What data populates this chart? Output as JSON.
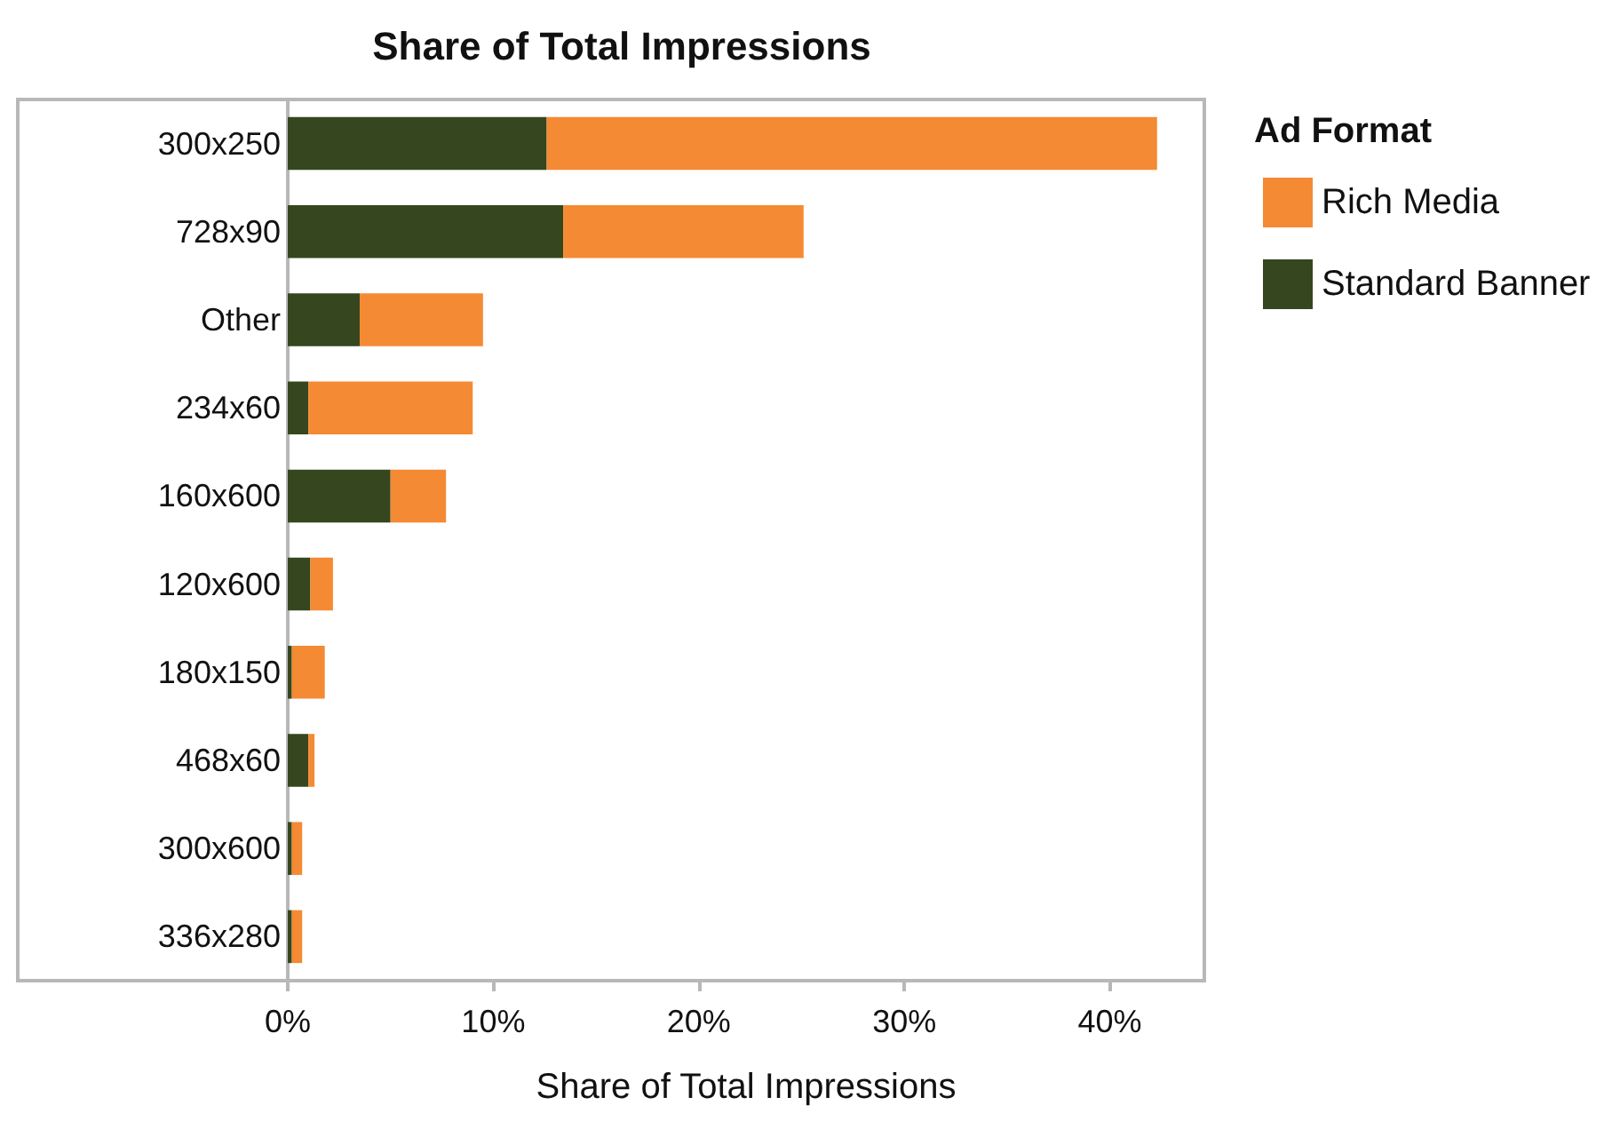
{
  "chart_data": {
    "type": "bar",
    "orientation": "horizontal",
    "stacked": true,
    "title": "Share of Total Impressions",
    "xlabel": "Share of Total Impressions",
    "legend_title": "Ad Format",
    "legend": "top right",
    "grid": false,
    "categories": [
      "300x250",
      "728x90",
      "Other",
      "234x60",
      "160x600",
      "120x600",
      "180x150",
      "468x60",
      "300x600",
      "336x280"
    ],
    "series": [
      {
        "name": "Standard Banner",
        "color": "#36461e",
        "values": [
          12.6,
          13.4,
          3.5,
          1.0,
          5.0,
          1.1,
          0.2,
          1.0,
          0.2,
          0.2
        ]
      },
      {
        "name": "Rich Media",
        "color": "#f48a33",
        "values": [
          29.7,
          11.7,
          6.0,
          8.0,
          2.7,
          1.1,
          1.6,
          0.3,
          0.5,
          0.5
        ]
      }
    ],
    "xlim": [
      0,
      44.6
    ],
    "xticks": [
      {
        "value": 0,
        "label": "0%"
      },
      {
        "value": 10,
        "label": "10%"
      },
      {
        "value": 20,
        "label": "20%"
      },
      {
        "value": 30,
        "label": "30%"
      },
      {
        "value": 40,
        "label": "40%"
      }
    ]
  }
}
